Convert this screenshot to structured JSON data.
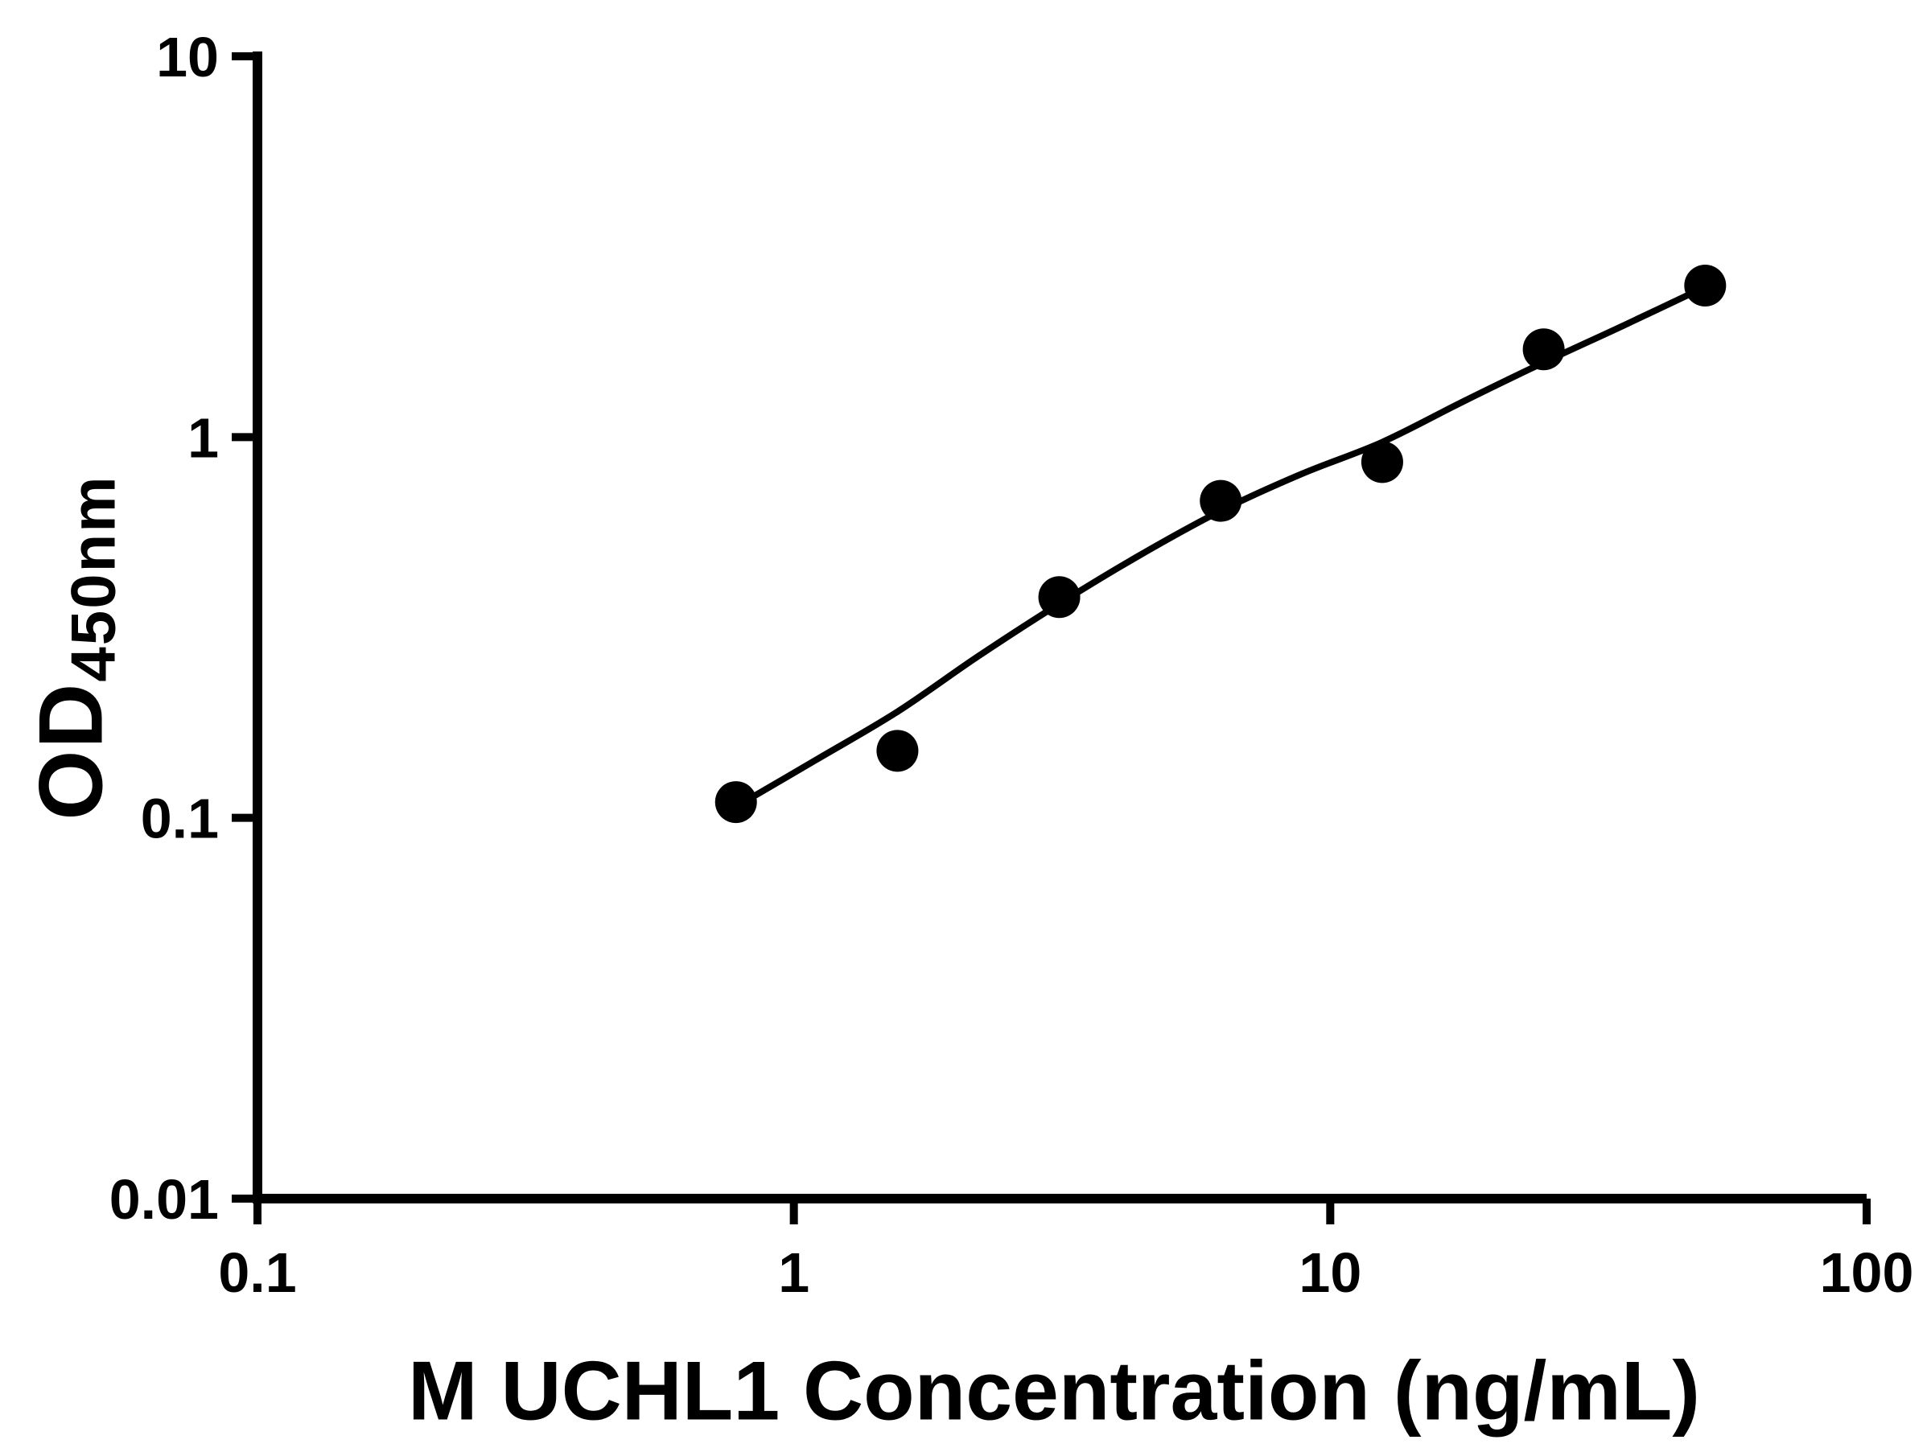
{
  "figure": {
    "background": "#ffffff"
  },
  "chart_data": {
    "type": "scatter",
    "title": "",
    "xlabel": "M UCHL1 Concentration (ng/mL)",
    "ylabel": "OD450nm",
    "ylabel_main": "OD",
    "ylabel_sub": "450nm",
    "x_scale": "log",
    "y_scale": "log",
    "xlim": [
      0.1,
      100
    ],
    "ylim": [
      0.01,
      10
    ],
    "grid": false,
    "legend": false,
    "axis_color": "#000000",
    "text_color": "#000000",
    "marker_color": "#000000",
    "line_color": "#000000",
    "x_ticks": [
      {
        "value": 0.1,
        "label": "0.1"
      },
      {
        "value": 1,
        "label": "1"
      },
      {
        "value": 10,
        "label": "10"
      },
      {
        "value": 100,
        "label": "100"
      }
    ],
    "y_ticks": [
      {
        "value": 10,
        "label": "10"
      },
      {
        "value": 1,
        "label": "1"
      },
      {
        "value": 0.1,
        "label": "0.1"
      },
      {
        "value": 0.01,
        "label": "0.01"
      }
    ],
    "points": [
      {
        "x": 0.78,
        "y": 0.11
      },
      {
        "x": 1.56,
        "y": 0.15
      },
      {
        "x": 3.125,
        "y": 0.38
      },
      {
        "x": 6.25,
        "y": 0.68
      },
      {
        "x": 12.5,
        "y": 0.86
      },
      {
        "x": 25,
        "y": 1.7
      },
      {
        "x": 50,
        "y": 2.5
      }
    ],
    "curve": [
      {
        "x": 0.78,
        "y": 0.107
      },
      {
        "x": 1.1,
        "y": 0.142
      },
      {
        "x": 1.56,
        "y": 0.19
      },
      {
        "x": 2.2,
        "y": 0.265
      },
      {
        "x": 3.125,
        "y": 0.365
      },
      {
        "x": 4.42,
        "y": 0.49
      },
      {
        "x": 6.25,
        "y": 0.64
      },
      {
        "x": 8.84,
        "y": 0.8
      },
      {
        "x": 12.5,
        "y": 0.97
      },
      {
        "x": 17.7,
        "y": 1.24
      },
      {
        "x": 25,
        "y": 1.57
      },
      {
        "x": 35.4,
        "y": 1.97
      },
      {
        "x": 50,
        "y": 2.48
      }
    ]
  }
}
